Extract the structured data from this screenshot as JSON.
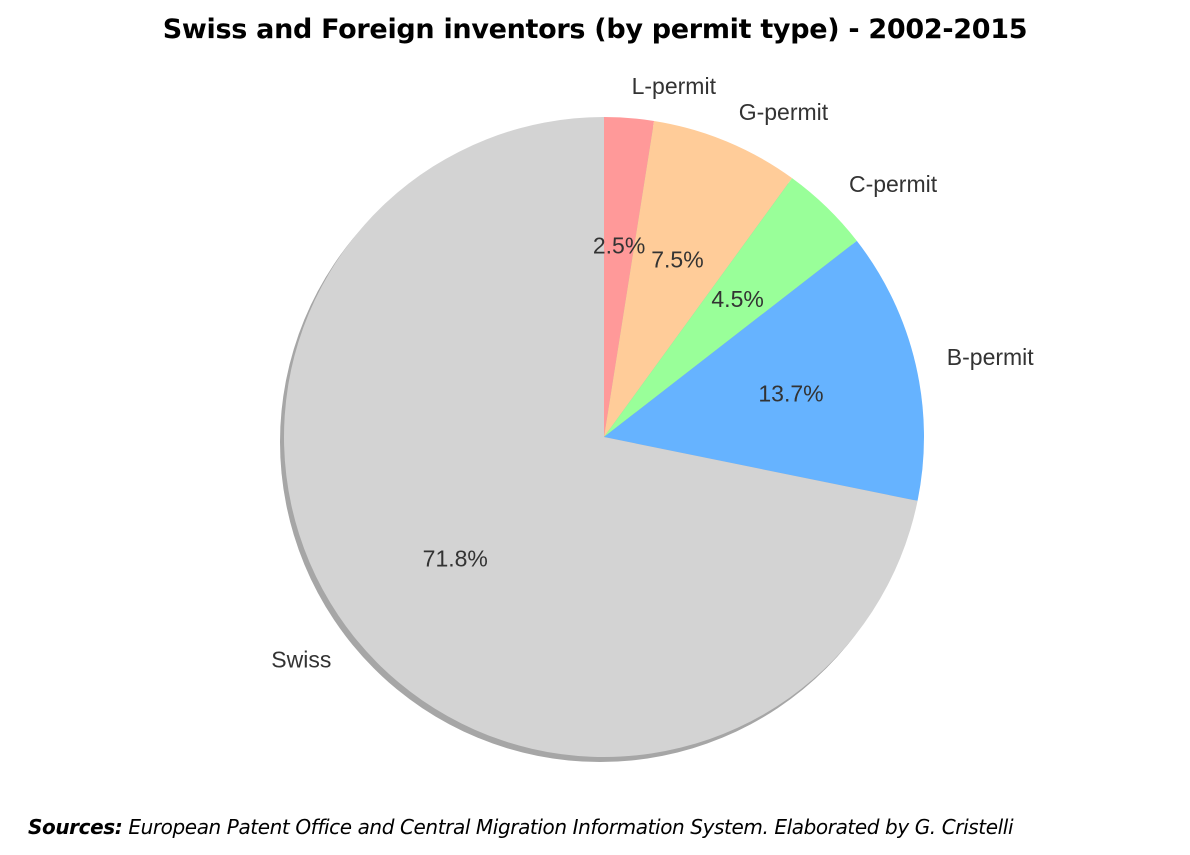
{
  "chart_data": {
    "type": "pie",
    "title": "Swiss and Foreign inventors (by permit type) - 2002-2015",
    "start_angle": "top",
    "direction": "clockwise",
    "shadow": true,
    "slices": [
      {
        "label": "L-permit",
        "value": 2.5,
        "pct_label": "2.5%",
        "color": "#ff9999"
      },
      {
        "label": "G-permit",
        "value": 7.5,
        "pct_label": "7.5%",
        "color": "#ffcc99"
      },
      {
        "label": "C-permit",
        "value": 4.5,
        "pct_label": "4.5%",
        "color": "#99ff99"
      },
      {
        "label": "B-permit",
        "value": 13.7,
        "pct_label": "13.7%",
        "color": "#66b3ff"
      },
      {
        "label": "Swiss",
        "value": 71.8,
        "pct_label": "71.8%",
        "color": "#d3d3d3"
      }
    ]
  },
  "footer": {
    "sources_label": "Sources:",
    "sources_text": " European Patent Office and Central Migration Information System. Elaborated by G. Cristelli"
  }
}
